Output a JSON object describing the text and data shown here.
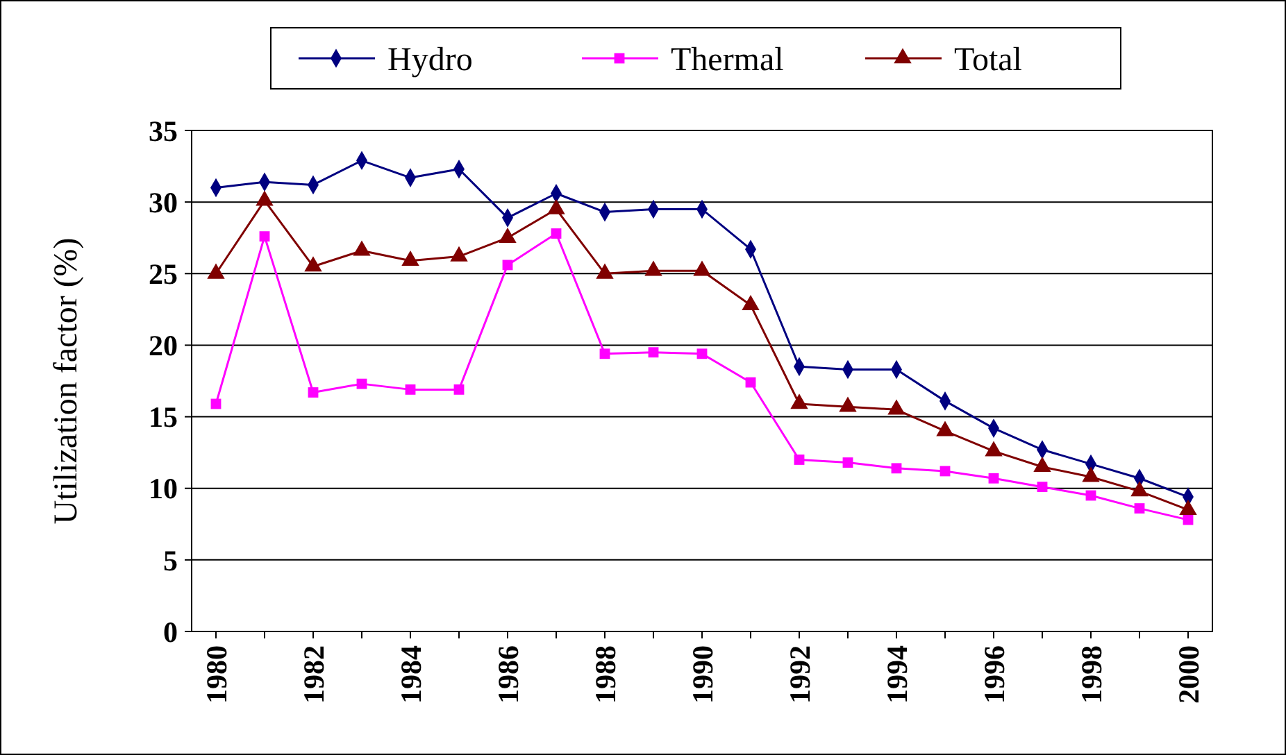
{
  "chart_data": {
    "type": "line",
    "ylabel": "Utilization factor (%)",
    "x": [
      1980,
      1981,
      1982,
      1983,
      1984,
      1985,
      1986,
      1987,
      1988,
      1989,
      1990,
      1991,
      1992,
      1993,
      1994,
      1995,
      1996,
      1997,
      1998,
      1999,
      2000
    ],
    "series": [
      {
        "name": "Hydro",
        "color": "#000080",
        "marker": "diamond",
        "values": [
          31,
          31.4,
          31.2,
          32.9,
          31.7,
          32.3,
          28.9,
          30.6,
          29.3,
          29.5,
          29.5,
          26.7,
          18.5,
          18.3,
          18.3,
          16.1,
          14.2,
          12.7,
          11.7,
          10.7,
          9.4
        ]
      },
      {
        "name": "Thermal",
        "color": "#ff00ff",
        "marker": "square",
        "values": [
          15.9,
          27.6,
          16.7,
          17.3,
          16.9,
          16.9,
          25.6,
          27.8,
          19.4,
          19.5,
          19.4,
          17.4,
          12,
          11.8,
          11.4,
          11.2,
          10.7,
          10.1,
          9.5,
          8.6,
          7.8
        ]
      },
      {
        "name": "Total",
        "color": "#800000",
        "marker": "triangle",
        "values": [
          25,
          30.1,
          25.5,
          26.6,
          25.9,
          26.2,
          27.5,
          29.5,
          25,
          25.2,
          25.2,
          22.8,
          15.9,
          15.7,
          15.5,
          14,
          12.6,
          11.5,
          10.8,
          9.8,
          8.5
        ]
      }
    ],
    "xlim": [
      1979.5,
      2000.5
    ],
    "xticks": [
      1980,
      {
        "value": 1981,
        "label": null
      },
      1982,
      {
        "value": 1983,
        "label": null
      },
      1984,
      {
        "value": 1985,
        "label": null
      },
      1986,
      {
        "value": 1987,
        "label": null
      },
      1988,
      {
        "value": 1989,
        "label": null
      },
      1990,
      {
        "value": 1991,
        "label": null
      },
      1992,
      {
        "value": 1993,
        "label": null
      },
      1994,
      {
        "value": 1995,
        "label": null
      },
      1996,
      {
        "value": 1997,
        "label": null
      },
      1998,
      {
        "value": 1999,
        "label": null
      },
      2000
    ],
    "ylim": [
      0,
      35
    ],
    "yticks": [
      0,
      5,
      10,
      15,
      20,
      25,
      30,
      35
    ],
    "grid": "y",
    "legend": "top",
    "line_style": "solid"
  }
}
